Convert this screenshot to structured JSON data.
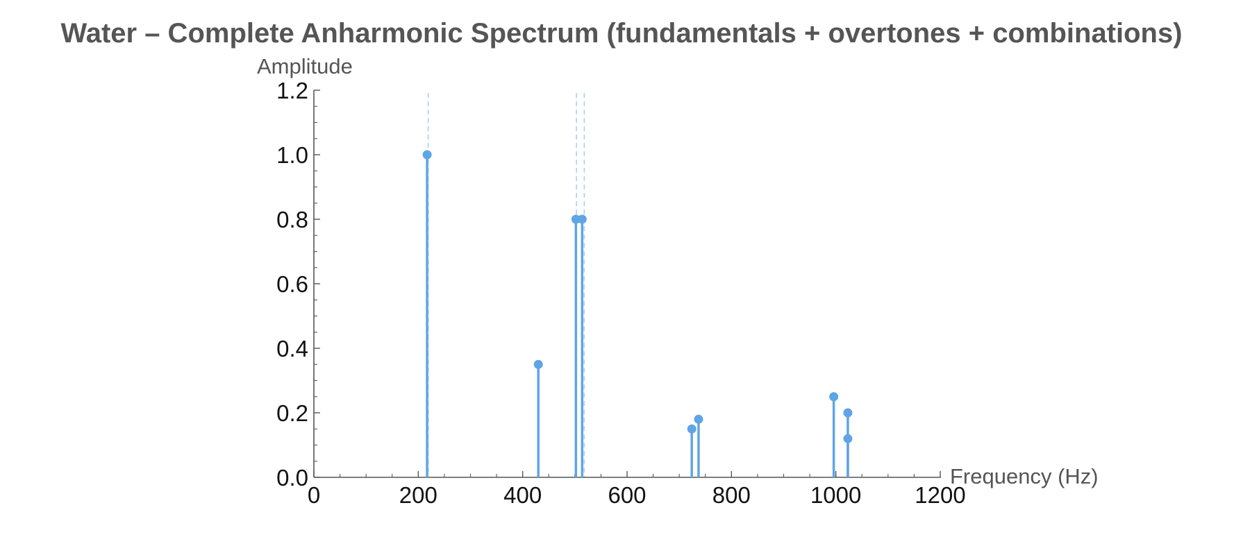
{
  "chart_data": {
    "type": "stem",
    "title": "Water – Complete Anharmonic Spectrum (fundamentals + overtones + combinations)",
    "xlabel": "Frequency (Hz)",
    "ylabel": "Amplitude",
    "xlim": [
      0,
      1200
    ],
    "ylim": [
      0,
      1.2
    ],
    "x_ticks": [
      0,
      200,
      400,
      600,
      800,
      1000,
      1200
    ],
    "y_ticks": [
      0.0,
      0.2,
      0.4,
      0.6,
      0.8,
      1.0,
      1.2
    ],
    "x_tick_labels": [
      "0",
      "200",
      "400",
      "600",
      "800",
      "1000",
      "1200"
    ],
    "y_tick_labels": [
      "0.0",
      "0.2",
      "0.4",
      "0.6",
      "0.8",
      "1.0",
      "1.2"
    ],
    "grid": false,
    "color": "#5fa5e6",
    "reference_lines_x": [
      219,
      503,
      518
    ],
    "points": [
      {
        "x": 217,
        "y": 1.0
      },
      {
        "x": 430,
        "y": 0.35
      },
      {
        "x": 502,
        "y": 0.8
      },
      {
        "x": 514,
        "y": 0.8
      },
      {
        "x": 724,
        "y": 0.15
      },
      {
        "x": 737,
        "y": 0.18
      },
      {
        "x": 996,
        "y": 0.25
      },
      {
        "x": 1023,
        "y": 0.2
      },
      {
        "x": 1023,
        "y": 0.12
      }
    ]
  }
}
